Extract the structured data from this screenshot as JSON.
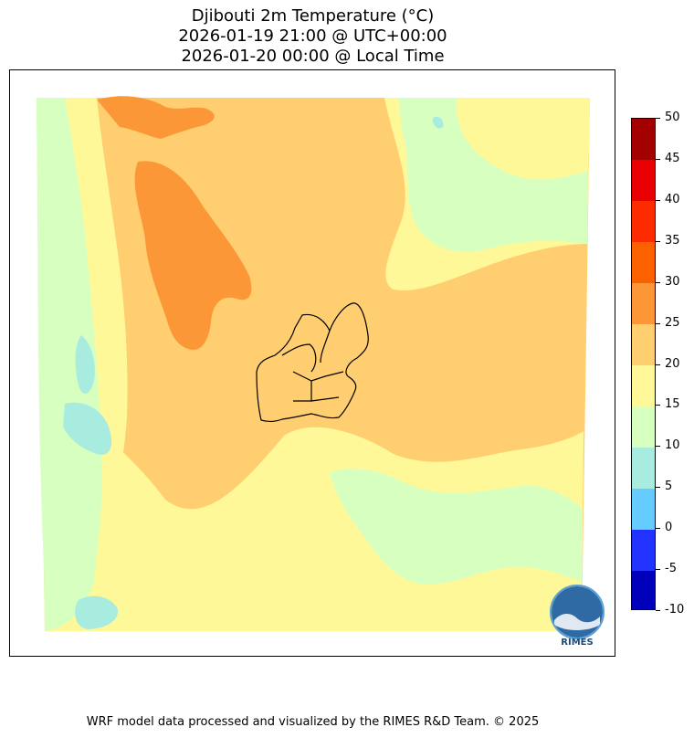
{
  "title": {
    "line1": "Djibouti 2m Temperature (°C)",
    "line2": "2026-01-19 21:00 @ UTC+00:00",
    "line3": "2026-01-20 00:00 @ Local Time"
  },
  "colorbar": {
    "levels": [
      -10,
      -5,
      0,
      5,
      10,
      15,
      20,
      25,
      30,
      35,
      40,
      45,
      50
    ],
    "tick_labels": [
      "-10",
      "-5",
      "0",
      "5",
      "10",
      "15",
      "20",
      "25",
      "30",
      "35",
      "40",
      "45",
      "50"
    ],
    "colors": [
      "#0000bb",
      "#2233ff",
      "#66ccff",
      "#a8ece0",
      "#d6ffc0",
      "#fff898",
      "#fece70",
      "#fc9738",
      "#fc6100",
      "#fc2b00",
      "#e90000",
      "#a50000"
    ]
  },
  "map": {
    "field": "2m Temperature",
    "region": "Djibouti",
    "band_colors": {
      "5_10": "#a8ece0",
      "10_15": "#d6ffc0",
      "15_20": "#fff898",
      "20_25": "#fece70",
      "25_30": "#fc9738"
    },
    "boundary_color": "#000000"
  },
  "logo": {
    "text": "RIMES",
    "color": "#1a4a7a"
  },
  "footer": "WRF model data processed and visualized by the RIMES R&D Team. © 2025"
}
